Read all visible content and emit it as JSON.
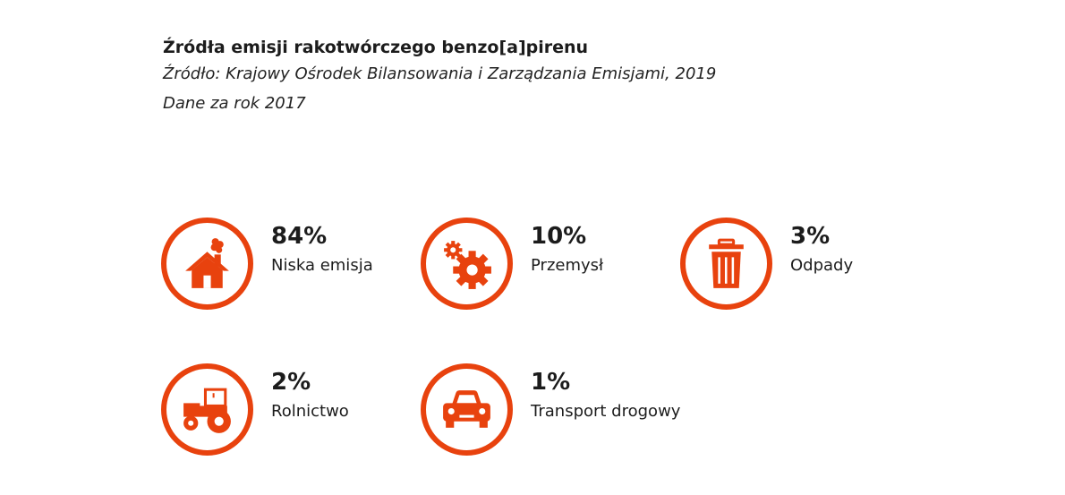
{
  "title": "Źródła emisji rakotwórczego benzo[a]pirenu",
  "source": "Źródło: Krajowy Ośrodek Bilansowania i Zarządzania Emisjami, 2019",
  "note": "Dane za rok 2017",
  "colors": {
    "accent": "#e8420e",
    "text": "#1c1c1c"
  },
  "chart_data": {
    "type": "table",
    "title": "Źródła emisji rakotwórczego benzo[a]pirenu",
    "categories": [
      "Niska emisja",
      "Przemysł",
      "Odpady",
      "Rolnictwo",
      "Transport drogowy"
    ],
    "values": [
      84,
      10,
      3,
      2,
      1
    ],
    "unit": "%",
    "items": [
      {
        "value": "84%",
        "label": "Niska emisja",
        "icon": "house-smoke-icon"
      },
      {
        "value": "10%",
        "label": "Przemysł",
        "icon": "gears-icon"
      },
      {
        "value": "3%",
        "label": "Odpady",
        "icon": "trash-bin-icon"
      },
      {
        "value": "2%",
        "label": "Rolnictwo",
        "icon": "tractor-icon"
      },
      {
        "value": "1%",
        "label": "Transport drogowy",
        "icon": "car-icon"
      }
    ]
  }
}
